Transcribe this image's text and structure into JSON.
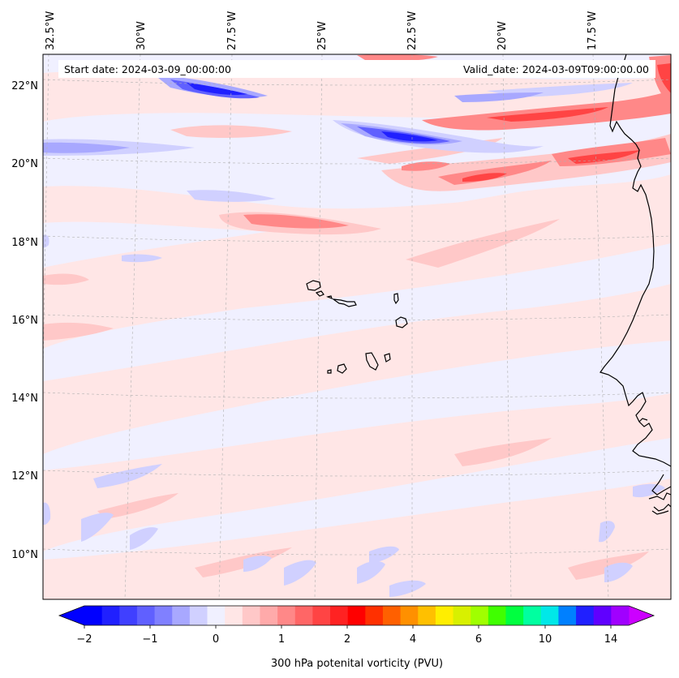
{
  "map": {
    "start_date": "Start date: 2024-03-09_00:00:00",
    "valid_date": "Valid_date: 2024-03-09T09:00:00.00",
    "lon_labels": [
      "32.5°W",
      "30°W",
      "27.5°W",
      "25°W",
      "22.5°W",
      "20°W",
      "17.5°W"
    ],
    "lat_labels": [
      "22°N",
      "20°N",
      "18°N",
      "16°N",
      "14°N",
      "12°N",
      "10°N"
    ],
    "field": "300 hPa potential vorticity",
    "features": [
      "cape-verde-islands",
      "west-africa-coastline"
    ]
  },
  "colorbar": {
    "title": "300 hPa potenital vorticity (PVU)",
    "tick_labels": [
      "−2",
      "−1",
      "0",
      "1",
      "2",
      "4",
      "6",
      "10",
      "14"
    ],
    "colors": [
      "#0000ff",
      "#2020ff",
      "#4040ff",
      "#6060ff",
      "#8080ff",
      "#a8a8ff",
      "#d0d0ff",
      "#f0f0ff",
      "#ffe6e6",
      "#ffc8c8",
      "#ffaaaa",
      "#ff8888",
      "#ff6666",
      "#ff4444",
      "#ff2222",
      "#ff0000",
      "#ff3000",
      "#ff6000",
      "#ff9000",
      "#ffc000",
      "#ffee00",
      "#d8f000",
      "#a0ff00",
      "#40ff00",
      "#00ff40",
      "#00ffa0",
      "#00e8e8",
      "#0080ff",
      "#2020ff",
      "#6000ff",
      "#a000ff"
    ],
    "extend_colors": {
      "low": "#0000ff",
      "high": "#cc00ff"
    }
  }
}
